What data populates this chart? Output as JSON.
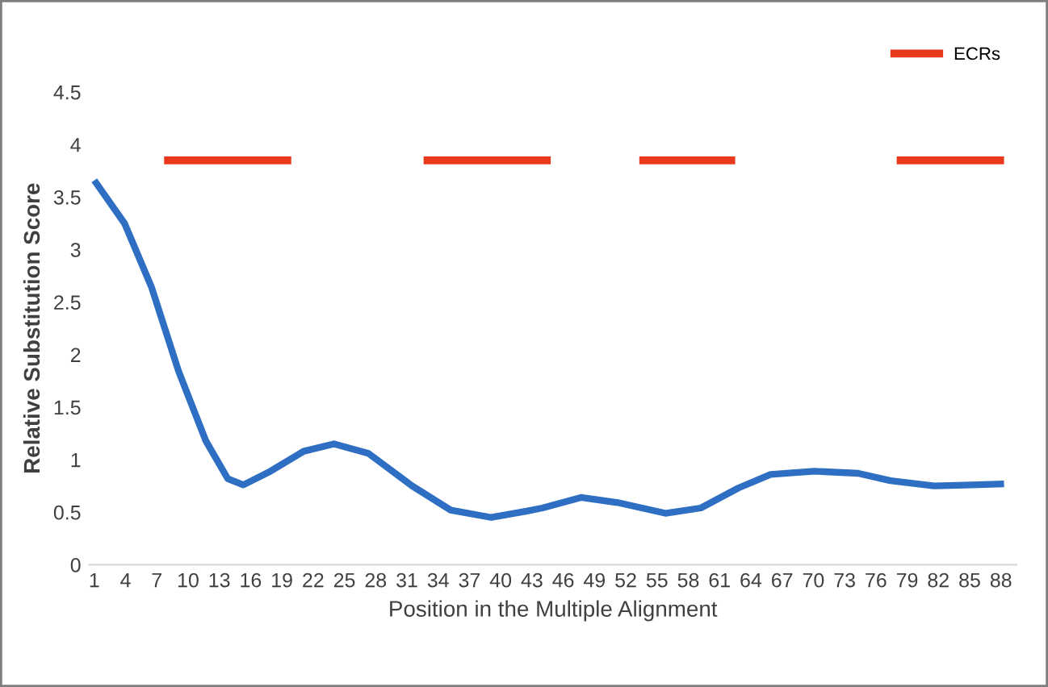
{
  "chart_data": {
    "type": "line",
    "xlabel": "Position in the Multiple Alignment",
    "ylabel": "Relative Substitution Score",
    "xlim": [
      0.5,
      89.5
    ],
    "xticks": [
      1,
      4,
      7,
      10,
      13,
      16,
      19,
      22,
      25,
      28,
      31,
      34,
      37,
      40,
      43,
      46,
      49,
      52,
      55,
      58,
      61,
      64,
      67,
      70,
      73,
      76,
      79,
      82,
      85,
      88
    ],
    "ylim": [
      0,
      4.5
    ],
    "yticks": [
      0,
      0.5,
      1,
      1.5,
      2,
      2.5,
      3,
      3.5,
      4,
      4.5
    ],
    "grid": false,
    "legend": "top right",
    "marker": "none",
    "line_style": "solid",
    "series": [
      {
        "color": "#2e6fc4",
        "x": [
          1,
          3.9,
          6.5,
          9.1,
          11.7,
          13.8,
          15.3,
          17.9,
          21.1,
          24,
          27.3,
          31.5,
          35.2,
          39.1,
          42.5,
          44,
          47.7,
          51.3,
          55.8,
          59.2,
          62.8,
          65.9,
          70.1,
          74.3,
          77.4,
          81.6,
          85.2,
          88.3
        ],
        "values": [
          3.66,
          3.25,
          2.64,
          1.84,
          1.18,
          0.82,
          0.76,
          0.89,
          1.08,
          1.15,
          1.06,
          0.75,
          0.52,
          0.45,
          0.51,
          0.54,
          0.64,
          0.59,
          0.49,
          0.54,
          0.73,
          0.86,
          0.89,
          0.87,
          0.8,
          0.75,
          0.76,
          0.77
        ]
      },
      {
        "name": "ECRs",
        "color": "#e8391d",
        "x": [
          7.7,
          19.9
        ],
        "values": [
          3.85,
          3.85
        ]
      },
      {
        "color": "#e8391d",
        "x": [
          32.6,
          44.8
        ],
        "values": [
          3.85,
          3.85
        ]
      },
      {
        "color": "#e8391d",
        "x": [
          53.3,
          62.5
        ],
        "values": [
          3.85,
          3.85
        ]
      },
      {
        "color": "#e8391d",
        "x": [
          78,
          88.3
        ],
        "values": [
          3.85,
          3.85
        ]
      }
    ]
  }
}
